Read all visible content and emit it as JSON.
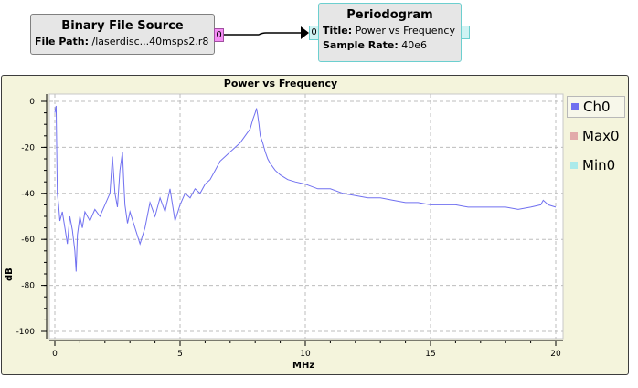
{
  "source_block": {
    "title": "Binary File Source",
    "param_label": "File Path:",
    "param_value": "/laserdisc...40msps2.r8",
    "out_port": "0"
  },
  "sink_block": {
    "title": "Periodogram",
    "params": [
      {
        "label": "Title:",
        "value": "Power vs Frequency"
      },
      {
        "label": "Sample Rate:",
        "value": "40e6"
      }
    ],
    "in_port": "0"
  },
  "colors": {
    "ch0": "#7070f0",
    "max0": "#e2aaaa",
    "min0": "#aaeaea",
    "panel": "#f4f4dc",
    "source_port": "#f58cf5",
    "sink_border": "#6ccfcf"
  },
  "legend": [
    {
      "name": "Ch0",
      "color": "#7070f0",
      "active": true
    },
    {
      "name": "Max0",
      "color": "#e2aaaa",
      "active": false
    },
    {
      "name": "Min0",
      "color": "#aaeaea",
      "active": false
    }
  ],
  "chart_data": {
    "type": "line",
    "title": "Power vs Frequency",
    "xlabel": "MHz",
    "ylabel": "dB",
    "xlim": [
      0,
      20
    ],
    "ylim": [
      -100,
      0
    ],
    "xticks": [
      "0",
      "5",
      "10",
      "15",
      "20"
    ],
    "yticks": [
      "0",
      "-20",
      "-40",
      "-60",
      "-80",
      "-100"
    ],
    "grid": true,
    "legend_position": "right",
    "series": [
      {
        "name": "Ch0",
        "x": [
          0.0,
          0.05,
          0.1,
          0.15,
          0.2,
          0.3,
          0.4,
          0.5,
          0.6,
          0.7,
          0.8,
          0.85,
          0.9,
          1.0,
          1.1,
          1.2,
          1.4,
          1.6,
          1.8,
          2.0,
          2.2,
          2.3,
          2.4,
          2.5,
          2.6,
          2.7,
          2.75,
          2.8,
          2.9,
          3.0,
          3.2,
          3.4,
          3.6,
          3.8,
          4.0,
          4.2,
          4.4,
          4.6,
          4.8,
          5.0,
          5.2,
          5.4,
          5.6,
          5.8,
          6.0,
          6.2,
          6.4,
          6.6,
          6.8,
          7.0,
          7.2,
          7.4,
          7.6,
          7.8,
          7.9,
          8.0,
          8.05,
          8.1,
          8.15,
          8.2,
          8.3,
          8.4,
          8.5,
          8.6,
          8.8,
          9.0,
          9.3,
          9.6,
          10.0,
          10.5,
          11.0,
          11.5,
          12.0,
          12.5,
          13.0,
          13.5,
          14.0,
          14.5,
          15.0,
          15.5,
          16.0,
          16.5,
          17.0,
          17.5,
          18.0,
          18.5,
          19.0,
          19.4,
          19.5,
          19.7,
          20.0
        ],
        "values": [
          -5,
          -2,
          -40,
          -45,
          -52,
          -48,
          -55,
          -62,
          -50,
          -56,
          -65,
          -74,
          -58,
          -50,
          -55,
          -48,
          -52,
          -47,
          -50,
          -45,
          -40,
          -24,
          -40,
          -46,
          -30,
          -22,
          -35,
          -45,
          -53,
          -48,
          -55,
          -62,
          -55,
          -44,
          -50,
          -42,
          -48,
          -38,
          -52,
          -45,
          -40,
          -42,
          -38,
          -40,
          -36,
          -34,
          -30,
          -26,
          -24,
          -22,
          -20,
          -18,
          -15,
          -12,
          -8,
          -5,
          -3,
          -6,
          -10,
          -15,
          -18,
          -22,
          -25,
          -27,
          -30,
          -32,
          -34,
          -35,
          -36,
          -38,
          -38,
          -40,
          -41,
          -42,
          -42,
          -43,
          -44,
          -44,
          -45,
          -45,
          -45,
          -46,
          -46,
          -46,
          -46,
          -47,
          -46,
          -45,
          -43,
          -45,
          -46
        ]
      }
    ]
  }
}
